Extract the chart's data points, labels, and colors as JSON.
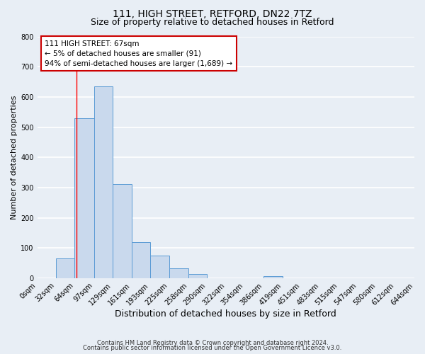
{
  "title1": "111, HIGH STREET, RETFORD, DN22 7TZ",
  "title2": "Size of property relative to detached houses in Retford",
  "xlabel": "Distribution of detached houses by size in Retford",
  "ylabel": "Number of detached properties",
  "bar_left_edges": [
    0,
    32,
    64,
    97,
    129,
    161,
    193,
    225,
    258,
    290,
    322,
    354,
    386,
    419,
    451,
    483,
    515,
    547,
    580,
    612
  ],
  "bar_widths": [
    32,
    32,
    33,
    32,
    32,
    32,
    32,
    33,
    32,
    32,
    32,
    32,
    33,
    32,
    32,
    32,
    32,
    33,
    32,
    32
  ],
  "bar_heights": [
    0,
    65,
    530,
    635,
    312,
    120,
    75,
    33,
    14,
    0,
    0,
    0,
    8,
    0,
    0,
    0,
    0,
    0,
    0,
    0
  ],
  "bar_color": "#c9d9ed",
  "bar_edge_color": "#5b9bd5",
  "tick_labels": [
    "0sqm",
    "32sqm",
    "64sqm",
    "97sqm",
    "129sqm",
    "161sqm",
    "193sqm",
    "225sqm",
    "258sqm",
    "290sqm",
    "322sqm",
    "354sqm",
    "386sqm",
    "419sqm",
    "451sqm",
    "483sqm",
    "515sqm",
    "547sqm",
    "580sqm",
    "612sqm",
    "644sqm"
  ],
  "ylim": [
    0,
    800
  ],
  "yticks": [
    0,
    100,
    200,
    300,
    400,
    500,
    600,
    700,
    800
  ],
  "red_line_x": 67,
  "annotation_line1": "111 HIGH STREET: 67sqm",
  "annotation_line2": "← 5% of detached houses are smaller (91)",
  "annotation_line3": "94% of semi-detached houses are larger (1,689) →",
  "footer1": "Contains HM Land Registry data © Crown copyright and database right 2024.",
  "footer2": "Contains public sector information licensed under the Open Government Licence v3.0.",
  "outer_bg_color": "#e8eef5",
  "plot_bg_color": "#e8eef5",
  "grid_color": "#ffffff",
  "title1_fontsize": 10,
  "title2_fontsize": 9,
  "xlabel_fontsize": 9,
  "ylabel_fontsize": 8,
  "tick_fontsize": 7,
  "footer_fontsize": 6
}
